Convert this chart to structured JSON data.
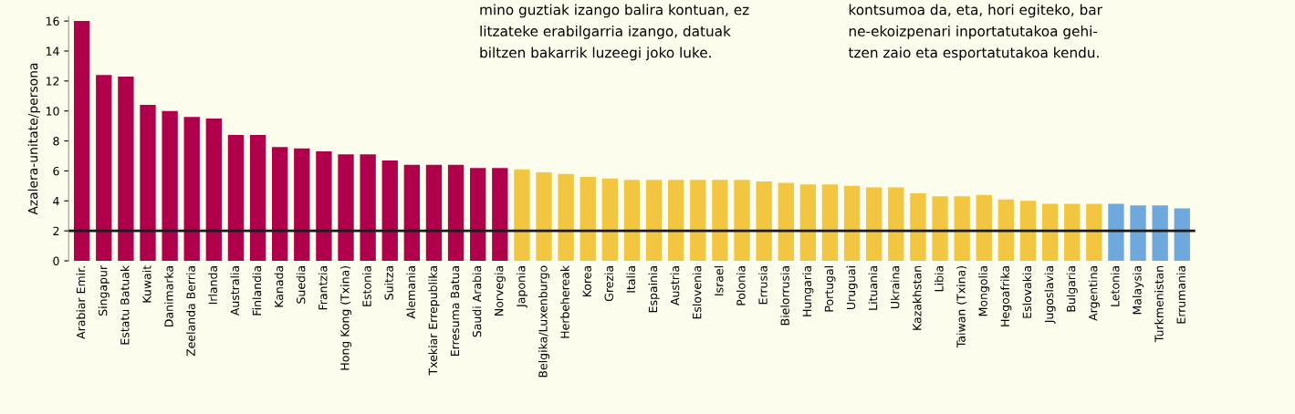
{
  "chart_data": {
    "type": "bar",
    "ylabel": "Azalera-unitate/persona",
    "categories": [
      "Arabiar Emir.",
      "Singapur",
      "Estatu Batuak",
      "Kuwait",
      "Danimarka",
      "Zeelanda Berria",
      "Irlanda",
      "Australia",
      "Finlandia",
      "Kanada",
      "Suedia",
      "Frantzia",
      "Hong Kong (Txina)",
      "Estonia",
      "Suitza",
      "Alemania",
      "Txekiar Errepublika",
      "Erresuma Batua",
      "Saudi Arabia",
      "Norvegia",
      "Japonia",
      "Belgika/Luxenburgo",
      "Herbehereak",
      "Korea",
      "Grezia",
      "Italia",
      "Espainia",
      "Austria",
      "Eslovenia",
      "Israel",
      "Polonia",
      "Errusia",
      "Bielorrusia",
      "Hungaria",
      "Portugal",
      "Uruguai",
      "Lituania",
      "Ukraina",
      "Kazakhstan",
      "Libia",
      "Taiwan (Txina)",
      "Mongolia",
      "Hegoafrika",
      "Eslovakia",
      "Jugoslavia",
      "Bulgaria",
      "Argentina",
      "Letonia",
      "Malaysia",
      "Turkmenistan",
      "Errumania"
    ],
    "values": [
      16.0,
      12.4,
      12.3,
      10.4,
      10.0,
      9.6,
      9.5,
      8.4,
      8.4,
      7.6,
      7.5,
      7.3,
      7.1,
      7.1,
      6.7,
      6.4,
      6.4,
      6.4,
      6.2,
      6.2,
      6.1,
      5.9,
      5.8,
      5.6,
      5.5,
      5.4,
      5.4,
      5.4,
      5.4,
      5.4,
      5.4,
      5.3,
      5.2,
      5.1,
      5.1,
      5.0,
      4.9,
      4.9,
      4.5,
      4.3,
      4.3,
      4.4,
      4.1,
      4.0,
      3.8,
      3.8,
      3.8,
      3.8,
      3.7,
      3.7,
      3.5
    ],
    "colors": [
      "#b0004c",
      "#b0004c",
      "#b0004c",
      "#b0004c",
      "#b0004c",
      "#b0004c",
      "#b0004c",
      "#b0004c",
      "#b0004c",
      "#b0004c",
      "#b0004c",
      "#b0004c",
      "#b0004c",
      "#b0004c",
      "#b0004c",
      "#b0004c",
      "#b0004c",
      "#b0004c",
      "#b0004c",
      "#b0004c",
      "#f2c641",
      "#f2c641",
      "#f2c641",
      "#f2c641",
      "#f2c641",
      "#f2c641",
      "#f2c641",
      "#f2c641",
      "#f2c641",
      "#f2c641",
      "#f2c641",
      "#f2c641",
      "#f2c641",
      "#f2c641",
      "#f2c641",
      "#f2c641",
      "#f2c641",
      "#f2c641",
      "#f2c641",
      "#f2c641",
      "#f2c641",
      "#f2c641",
      "#f2c641",
      "#f2c641",
      "#f2c641",
      "#f2c641",
      "#f2c641",
      "#6fa8dc",
      "#6fa8dc",
      "#6fa8dc",
      "#6fa8dc"
    ],
    "ylim": [
      0,
      16.3
    ],
    "yticks": [
      0,
      2,
      4,
      6,
      8,
      10,
      12,
      14,
      16
    ],
    "grid": false,
    "legend": false,
    "ref_lines": [
      {
        "axis": "y",
        "value": 2,
        "color": "#1a1a1a"
      }
    ],
    "annotations": [
      "mino guztiak izango balira kontuan, ez\nlitzateke erabilgarria izango, datuak\nbiltzen bakarrik luzeegi joko luke.",
      "kontsumoa da, eta, hori egiteko, bar\nne-ekoizpenari inportatutakoa gehi-\ntzen zaio eta esportatutakoa kendu."
    ]
  }
}
